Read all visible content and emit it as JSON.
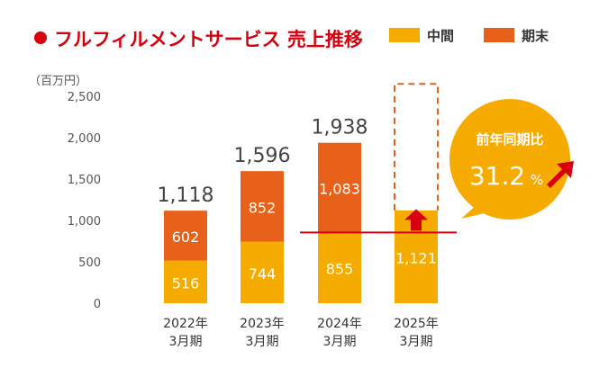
{
  "chart_data": {
    "type": "bar",
    "title": "フルフィルメントサービス 売上推移",
    "ylabel": "（百万円）",
    "ylim": [
      0,
      2500
    ],
    "yticks": [
      "0",
      "500",
      "1,000",
      "1,500",
      "2,000",
      "2,500"
    ],
    "ytick_values": [
      0,
      500,
      1000,
      1500,
      2000,
      2500
    ],
    "categories": [
      {
        "line1": "2022年",
        "line2": "3月期"
      },
      {
        "line1": "2023年",
        "line2": "3月期"
      },
      {
        "line1": "2024年",
        "line2": "3月期"
      },
      {
        "line1": "2025年",
        "line2": "3月期"
      }
    ],
    "series": [
      {
        "name": "中間",
        "color": "#f6ab00",
        "values": [
          516,
          744,
          855,
          1121
        ],
        "labels": [
          "516",
          "744",
          "855",
          "1,121"
        ]
      },
      {
        "name": "期末",
        "color": "#e8611a",
        "values": [
          602,
          852,
          1083,
          null
        ],
        "labels": [
          "602",
          "852",
          "1,083",
          ""
        ]
      }
    ],
    "totals": [
      "1,118",
      "1,596",
      "1,938",
      ""
    ],
    "total_values": [
      1118,
      1596,
      1938,
      null
    ],
    "forecast_dashed_top": 2650,
    "reference_line_value": 855,
    "callout": {
      "title": "前年同期比",
      "value": "31.2",
      "unit": "%"
    },
    "colors": {
      "title_bullet": "#d7000f",
      "title_text": "#d7000f",
      "reference_line": "#d7000f",
      "arrow": "#d7000f",
      "callout_bg": "#f6ab00",
      "axis_text": "#555555",
      "total_text": "#444444",
      "dashed": "#e8611a"
    }
  }
}
